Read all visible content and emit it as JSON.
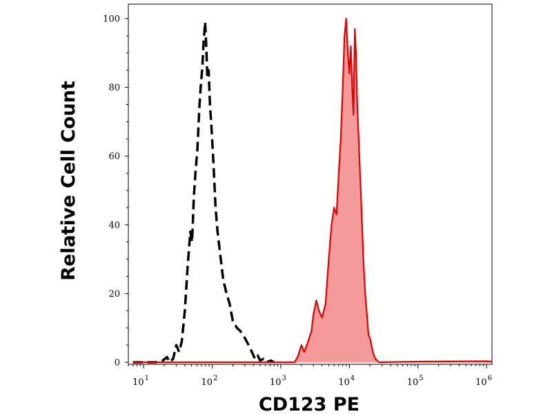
{
  "chart_data": {
    "type": "area",
    "title": "",
    "xlabel": "CD123 PE",
    "ylabel": "Relative Cell Count",
    "x_scale": "log",
    "xlim": [
      6,
      1200000
    ],
    "ylim": [
      0,
      100
    ],
    "grid": false,
    "legend": "none",
    "yticks": [
      {
        "value": 0,
        "label": "0"
      },
      {
        "value": 20,
        "label": "20"
      },
      {
        "value": 40,
        "label": "40"
      },
      {
        "value": 60,
        "label": "60"
      },
      {
        "value": 80,
        "label": "80"
      },
      {
        "value": 100,
        "label": "100"
      }
    ],
    "xticks": [
      {
        "value": 10,
        "base": "10",
        "exp": "1"
      },
      {
        "value": 100,
        "base": "10",
        "exp": "2"
      },
      {
        "value": 1000,
        "base": "10",
        "exp": "3"
      },
      {
        "value": 10000,
        "base": "10",
        "exp": "4"
      },
      {
        "value": 100000,
        "base": "10",
        "exp": "5"
      },
      {
        "value": 1000000,
        "base": "10",
        "exp": "6"
      }
    ],
    "series": [
      {
        "style": "dashed",
        "stroke": "#000000",
        "fill": "none",
        "points": [
          [
            7,
            0
          ],
          [
            15,
            0
          ],
          [
            19,
            0.5
          ],
          [
            22,
            1.5
          ],
          [
            24,
            0
          ],
          [
            27,
            1
          ],
          [
            30,
            5
          ],
          [
            33,
            3
          ],
          [
            36,
            6
          ],
          [
            40,
            15
          ],
          [
            44,
            28
          ],
          [
            48,
            38
          ],
          [
            51,
            35
          ],
          [
            54,
            48
          ],
          [
            57,
            55
          ],
          [
            61,
            62
          ],
          [
            65,
            74
          ],
          [
            68,
            80
          ],
          [
            72,
            86
          ],
          [
            75,
            93
          ],
          [
            79,
            99
          ],
          [
            82,
            92
          ],
          [
            85,
            83
          ],
          [
            89,
            85
          ],
          [
            93,
            75
          ],
          [
            98,
            68
          ],
          [
            105,
            57
          ],
          [
            112,
            45
          ],
          [
            120,
            38
          ],
          [
            130,
            32
          ],
          [
            145,
            24
          ],
          [
            162,
            20
          ],
          [
            180,
            17
          ],
          [
            200,
            12
          ],
          [
            230,
            10
          ],
          [
            260,
            9
          ],
          [
            300,
            7
          ],
          [
            340,
            5
          ],
          [
            380,
            3
          ],
          [
            420,
            1
          ],
          [
            460,
            2
          ],
          [
            500,
            0.5
          ],
          [
            560,
            1
          ],
          [
            620,
            0
          ],
          [
            720,
            0.5
          ],
          [
            800,
            0
          ]
        ]
      },
      {
        "style": "solid",
        "stroke": "#e00000",
        "fill": "#f59a9a",
        "points": [
          [
            7,
            0
          ],
          [
            1000,
            0
          ],
          [
            1600,
            0
          ],
          [
            1800,
            2
          ],
          [
            2000,
            5
          ],
          [
            2200,
            3
          ],
          [
            2500,
            6
          ],
          [
            2800,
            9
          ],
          [
            3000,
            14
          ],
          [
            3300,
            18
          ],
          [
            3600,
            15
          ],
          [
            4000,
            13
          ],
          [
            4500,
            17
          ],
          [
            5000,
            30
          ],
          [
            5500,
            40
          ],
          [
            6000,
            45
          ],
          [
            6500,
            43
          ],
          [
            7000,
            55
          ],
          [
            7500,
            65
          ],
          [
            8000,
            80
          ],
          [
            8500,
            95
          ],
          [
            9000,
            100
          ],
          [
            9500,
            90
          ],
          [
            10000,
            84
          ],
          [
            10500,
            92
          ],
          [
            11000,
            80
          ],
          [
            11500,
            72
          ],
          [
            12000,
            97
          ],
          [
            12500,
            90
          ],
          [
            13000,
            76
          ],
          [
            14000,
            60
          ],
          [
            15000,
            45
          ],
          [
            16000,
            30
          ],
          [
            17000,
            20
          ],
          [
            18000,
            14
          ],
          [
            19000,
            8
          ],
          [
            20000,
            7
          ],
          [
            21000,
            5
          ],
          [
            22000,
            3
          ],
          [
            24000,
            1
          ],
          [
            27000,
            0
          ],
          [
            100000,
            0.2
          ],
          [
            1000000,
            0.3
          ],
          [
            1200000,
            0.2
          ]
        ]
      }
    ]
  }
}
